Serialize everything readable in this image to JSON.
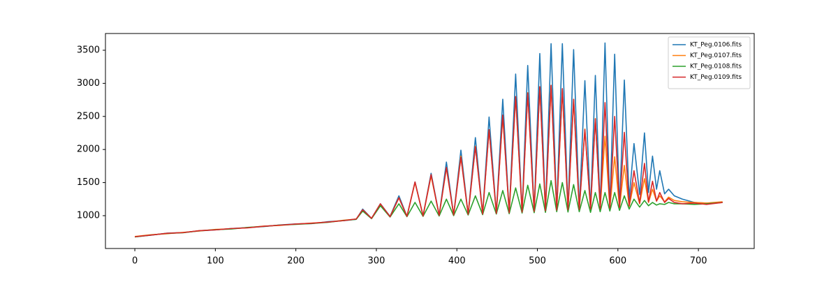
{
  "chart_data": {
    "type": "line",
    "x": [
      0,
      20,
      40,
      60,
      80,
      100,
      120,
      140,
      160,
      180,
      200,
      220,
      240,
      260,
      275,
      283,
      294,
      305,
      317,
      328,
      338,
      348,
      358,
      368,
      378,
      387,
      396,
      405,
      414,
      423,
      432,
      440,
      449,
      457,
      465,
      473,
      481,
      488,
      496,
      503,
      510,
      517,
      524,
      531,
      538,
      545,
      552,
      559,
      566,
      572,
      578,
      584,
      590,
      596,
      602,
      608,
      614,
      620,
      627,
      633,
      638,
      643,
      648,
      652,
      658,
      663,
      670,
      680,
      695,
      710,
      730
    ],
    "series": [
      {
        "name": "KT_Peg.0106.fits",
        "color": "#1f77b4",
        "values": [
          680,
          705,
          735,
          745,
          770,
          785,
          805,
          820,
          835,
          860,
          875,
          880,
          910,
          925,
          945,
          1100,
          960,
          1180,
          990,
          1300,
          990,
          1510,
          1000,
          1640,
          1010,
          1810,
          1010,
          1990,
          1020,
          2180,
          1030,
          2490,
          1040,
          2760,
          1050,
          3140,
          1060,
          3270,
          1070,
          3450,
          1080,
          3600,
          1090,
          3600,
          1090,
          3510,
          1100,
          3040,
          1100,
          3120,
          1110,
          3610,
          1120,
          3440,
          1130,
          3050,
          1250,
          2090,
          1320,
          2250,
          1350,
          1900,
          1400,
          1680,
          1330,
          1400,
          1300,
          1250,
          1200,
          1190,
          1200
        ]
      },
      {
        "name": "KT_Peg.0107.fits",
        "color": "#ff7f0e",
        "values": [
          685,
          712,
          728,
          748,
          768,
          792,
          802,
          818,
          842,
          852,
          872,
          888,
          902,
          932,
          948,
          1080,
          960,
          1170,
          985,
          1270,
          990,
          1500,
          1000,
          1600,
          1005,
          1720,
          1010,
          1900,
          1020,
          2050,
          1030,
          2300,
          1040,
          2500,
          1050,
          2800,
          1055,
          2860,
          1065,
          2950,
          1075,
          2970,
          1085,
          2900,
          1090,
          2760,
          1095,
          2310,
          1100,
          2470,
          1105,
          2200,
          1115,
          1890,
          1125,
          1760,
          1140,
          1500,
          1180,
          1560,
          1200,
          1400,
          1220,
          1300,
          1210,
          1280,
          1230,
          1210,
          1200,
          1190,
          1210
        ]
      },
      {
        "name": "KT_Peg.0108.fits",
        "color": "#2ca02c",
        "values": [
          678,
          708,
          732,
          742,
          772,
          788,
          798,
          822,
          838,
          858,
          868,
          882,
          900,
          928,
          945,
          1070,
          955,
          1150,
          980,
          1180,
          985,
          1200,
          990,
          1220,
          995,
          1250,
          1000,
          1250,
          1010,
          1300,
          1015,
          1350,
          1025,
          1380,
          1030,
          1420,
          1040,
          1460,
          1045,
          1480,
          1050,
          1530,
          1060,
          1500,
          1055,
          1470,
          1060,
          1380,
          1050,
          1350,
          1060,
          1350,
          1070,
          1350,
          1080,
          1300,
          1100,
          1250,
          1130,
          1230,
          1150,
          1200,
          1160,
          1180,
          1170,
          1200,
          1180,
          1180,
          1170,
          1180,
          1200
        ]
      },
      {
        "name": "KT_Peg.0109.fits",
        "color": "#d62728",
        "values": [
          682,
          706,
          734,
          744,
          774,
          786,
          806,
          816,
          840,
          856,
          874,
          886,
          904,
          926,
          950,
          1090,
          960,
          1180,
          985,
          1270,
          990,
          1510,
          995,
          1620,
          1005,
          1730,
          1010,
          1880,
          1020,
          2040,
          1025,
          2300,
          1035,
          2520,
          1045,
          2800,
          1055,
          2850,
          1065,
          2950,
          1075,
          2970,
          1085,
          2920,
          1090,
          2760,
          1095,
          2300,
          1100,
          2460,
          1105,
          2710,
          1115,
          2500,
          1125,
          2260,
          1150,
          1680,
          1190,
          1790,
          1210,
          1520,
          1220,
          1350,
          1200,
          1260,
          1200,
          1180,
          1190,
          1170,
          1200
        ]
      }
    ],
    "xlim": [
      -36.5,
      769.3
    ],
    "ylim": [
      504,
      3753
    ],
    "xticks": [
      0,
      100,
      200,
      300,
      400,
      500,
      600,
      700
    ],
    "yticks": [
      1000,
      1500,
      2000,
      2500,
      3000,
      3500
    ],
    "legend": "upper right"
  }
}
